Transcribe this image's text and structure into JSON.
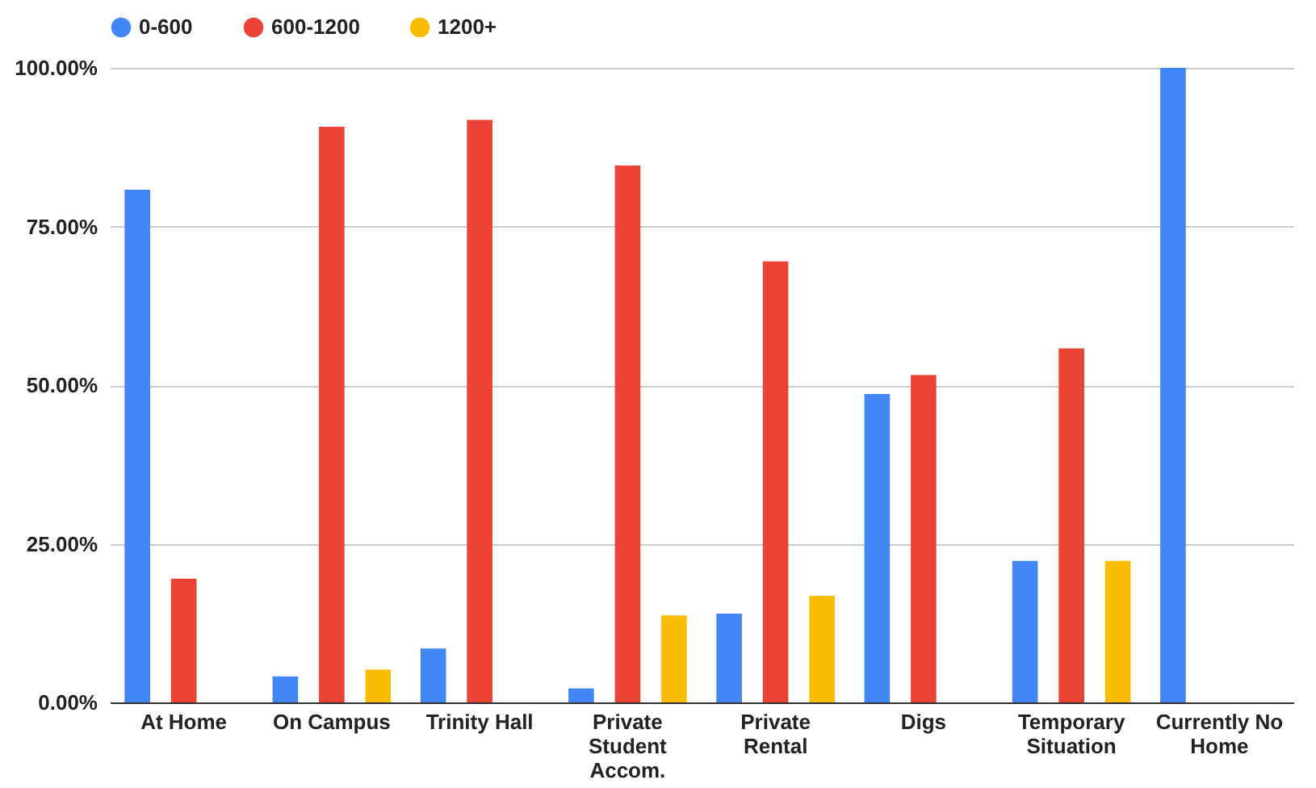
{
  "chart_data": {
    "type": "bar",
    "categories": [
      "At Home",
      "On Campus",
      "Trinity Hall",
      "Private Student Accom.",
      "Private Rental",
      "Digs",
      "Temporary Situation",
      "Currently No Home"
    ],
    "series": [
      {
        "name": "0-600",
        "color": "#4285f4",
        "values": [
          80.8,
          4.1,
          8.5,
          2.2,
          14.0,
          48.6,
          22.3,
          100
        ]
      },
      {
        "name": "600-1200",
        "color": "#ea4335",
        "values": [
          19.5,
          90.7,
          91.8,
          84.6,
          69.5,
          51.6,
          55.8,
          null
        ]
      },
      {
        "name": "1200+",
        "color": "#fbbc04",
        "values": [
          null,
          5.2,
          null,
          13.7,
          16.8,
          null,
          22.3,
          null
        ]
      }
    ],
    "ylim": [
      0,
      100
    ],
    "yticks": [
      {
        "value": 0,
        "label": "0.00%"
      },
      {
        "value": 25,
        "label": "25.00%"
      },
      {
        "value": 50,
        "label": "50.00%"
      },
      {
        "value": 75,
        "label": "75.00%"
      },
      {
        "value": 100,
        "label": "100.00%"
      }
    ],
    "grid": "y",
    "legend": "top"
  }
}
